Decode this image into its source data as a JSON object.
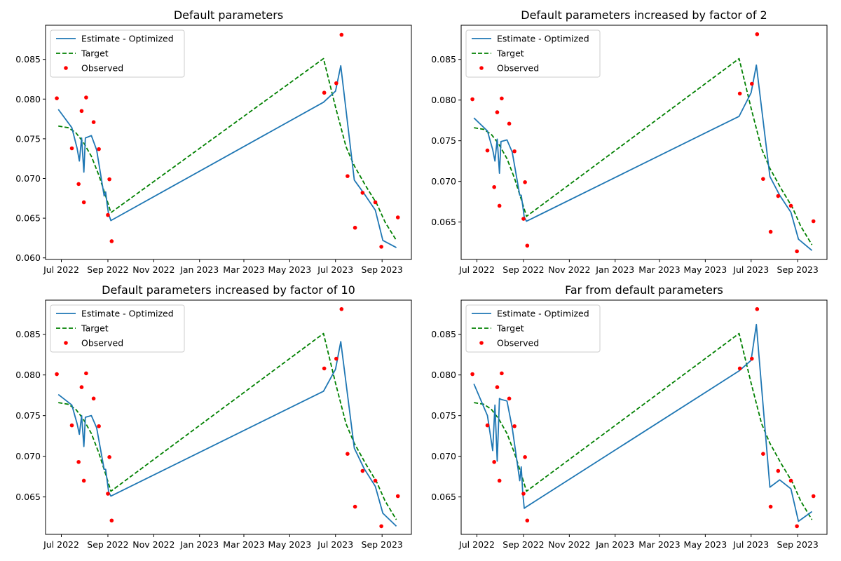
{
  "chart_data": [
    {
      "type": "line",
      "title": "Default parameters",
      "xlabel": "",
      "ylabel": "",
      "xlim": [
        "2022-06-10",
        "2023-10-10"
      ],
      "ylim": [
        0.0598,
        0.0893
      ],
      "yticks": [
        0.06,
        0.065,
        0.07,
        0.075,
        0.08,
        0.085
      ],
      "ytick_labels": [
        "0.060",
        "0.065",
        "0.070",
        "0.075",
        "0.080",
        "0.085"
      ],
      "xticks": [
        "2022-07-01",
        "2022-09-01",
        "2022-11-01",
        "2023-01-01",
        "2023-03-01",
        "2023-05-01",
        "2023-07-01",
        "2023-09-01"
      ],
      "xtick_labels": [
        "Jul 2022",
        "Sep 2022",
        "Nov 2022",
        "Jan 2023",
        "Mar 2023",
        "May 2023",
        "Jul 2023",
        "Sep 2023"
      ],
      "legend": {
        "placement": "top-left",
        "entries": [
          "Estimate - Optimized",
          "Target",
          "Observed"
        ]
      },
      "series": [
        {
          "name": "Estimate - Optimized",
          "style": "solid",
          "color": "#1f77b4",
          "x": [
            "2022-06-27",
            "2022-07-15",
            "2022-07-22",
            "2022-07-25",
            "2022-07-28",
            "2022-07-31",
            "2022-08-02",
            "2022-08-10",
            "2022-08-17",
            "2022-08-27",
            "2022-08-29",
            "2022-08-31",
            "2022-09-02",
            "2022-09-05",
            "2023-06-15",
            "2023-07-01",
            "2023-07-08",
            "2023-07-26",
            "2023-08-08",
            "2023-08-23",
            "2023-09-02",
            "2023-09-20"
          ],
          "y": [
            0.0787,
            0.0764,
            0.0738,
            0.0722,
            0.0751,
            0.0708,
            0.0751,
            0.0754,
            0.0736,
            0.0678,
            0.0683,
            0.0667,
            0.0655,
            0.0647,
            0.0796,
            0.081,
            0.0842,
            0.0698,
            0.0681,
            0.066,
            0.0622,
            0.0613
          ]
        },
        {
          "name": "Target",
          "style": "dashed",
          "color": "#008000",
          "x": [
            "2022-06-27",
            "2022-07-10",
            "2022-07-20",
            "2022-07-30",
            "2022-08-10",
            "2022-08-20",
            "2022-08-30",
            "2022-09-05",
            "2023-06-15",
            "2023-07-01",
            "2023-07-15",
            "2023-07-26",
            "2023-08-10",
            "2023-08-25",
            "2023-09-05",
            "2023-09-20"
          ],
          "y": [
            0.0766,
            0.0764,
            0.0758,
            0.0746,
            0.0728,
            0.0704,
            0.0675,
            0.0657,
            0.0851,
            0.079,
            0.074,
            0.0716,
            0.0691,
            0.0668,
            0.0645,
            0.0622
          ]
        },
        {
          "name": "Observed",
          "style": "scatter",
          "color": "#ff0000",
          "x": [
            "2022-06-25",
            "2022-07-15",
            "2022-07-24",
            "2022-07-28",
            "2022-07-31",
            "2022-08-03",
            "2022-08-13",
            "2022-08-20",
            "2022-09-01",
            "2022-09-03",
            "2022-09-06",
            "2023-06-16",
            "2023-07-02",
            "2023-07-09",
            "2023-07-17",
            "2023-07-27",
            "2023-08-06",
            "2023-08-23",
            "2023-08-31",
            "2023-09-22"
          ],
          "y": [
            0.0801,
            0.0738,
            0.0693,
            0.0785,
            0.067,
            0.0802,
            0.0771,
            0.0737,
            0.0654,
            0.0699,
            0.0621,
            0.0808,
            0.082,
            0.0881,
            0.0703,
            0.0638,
            0.0682,
            0.067,
            0.0614,
            0.0651
          ]
        }
      ]
    },
    {
      "type": "line",
      "title": "Default parameters increased by factor of 2",
      "xlabel": "",
      "ylabel": "",
      "xlim": [
        "2022-06-10",
        "2023-10-10"
      ],
      "ylim": [
        0.0604,
        0.0892
      ],
      "yticks": [
        0.065,
        0.07,
        0.075,
        0.08,
        0.085
      ],
      "ytick_labels": [
        "0.065",
        "0.070",
        "0.075",
        "0.080",
        "0.085"
      ],
      "xticks": [
        "2022-07-01",
        "2022-09-01",
        "2022-11-01",
        "2023-01-01",
        "2023-03-01",
        "2023-05-01",
        "2023-07-01",
        "2023-09-01"
      ],
      "xtick_labels": [
        "Jul 2022",
        "Sep 2022",
        "Nov 2022",
        "Jan 2023",
        "Mar 2023",
        "May 2023",
        "Jul 2023",
        "Sep 2023"
      ],
      "legend": {
        "placement": "top-left",
        "entries": [
          "Estimate - Optimized",
          "Target",
          "Observed"
        ]
      },
      "series": [
        {
          "name": "Estimate - Optimized",
          "style": "solid",
          "color": "#1f77b4",
          "x": [
            "2022-06-27",
            "2022-07-15",
            "2022-07-22",
            "2022-07-25",
            "2022-07-28",
            "2022-07-31",
            "2022-08-02",
            "2022-08-10",
            "2022-08-17",
            "2022-08-27",
            "2022-08-29",
            "2022-08-31",
            "2022-09-02",
            "2022-09-05",
            "2023-06-15",
            "2023-07-01",
            "2023-07-08",
            "2023-07-26",
            "2023-08-08",
            "2023-08-23",
            "2023-09-02",
            "2023-09-20"
          ],
          "y": [
            0.0778,
            0.0762,
            0.0739,
            0.0725,
            0.0752,
            0.071,
            0.0749,
            0.0751,
            0.0736,
            0.0683,
            0.0683,
            0.067,
            0.0656,
            0.0651,
            0.078,
            0.0809,
            0.0843,
            0.0706,
            0.0683,
            0.0662,
            0.0629,
            0.0615
          ]
        },
        {
          "name": "Target",
          "style": "dashed",
          "color": "#008000",
          "x": [
            "2022-06-27",
            "2022-07-10",
            "2022-07-20",
            "2022-07-30",
            "2022-08-10",
            "2022-08-20",
            "2022-08-30",
            "2022-09-05",
            "2023-06-15",
            "2023-07-01",
            "2023-07-15",
            "2023-07-26",
            "2023-08-10",
            "2023-08-25",
            "2023-09-05",
            "2023-09-20"
          ],
          "y": [
            0.0766,
            0.0764,
            0.0758,
            0.0746,
            0.0728,
            0.0704,
            0.0675,
            0.0657,
            0.0851,
            0.079,
            0.074,
            0.0716,
            0.0691,
            0.0668,
            0.0645,
            0.0622
          ]
        },
        {
          "name": "Observed",
          "style": "scatter",
          "color": "#ff0000",
          "x": [
            "2022-06-25",
            "2022-07-15",
            "2022-07-24",
            "2022-07-28",
            "2022-07-31",
            "2022-08-03",
            "2022-08-13",
            "2022-08-20",
            "2022-09-01",
            "2022-09-03",
            "2022-09-06",
            "2023-06-16",
            "2023-07-02",
            "2023-07-09",
            "2023-07-17",
            "2023-07-27",
            "2023-08-06",
            "2023-08-23",
            "2023-08-31",
            "2023-09-22"
          ],
          "y": [
            0.0801,
            0.0738,
            0.0693,
            0.0785,
            0.067,
            0.0802,
            0.0771,
            0.0737,
            0.0654,
            0.0699,
            0.0621,
            0.0808,
            0.082,
            0.0881,
            0.0703,
            0.0638,
            0.0682,
            0.067,
            0.0614,
            0.0651
          ]
        }
      ]
    },
    {
      "type": "line",
      "title": "Default parameters increased by factor of 10",
      "xlabel": "",
      "ylabel": "",
      "xlim": [
        "2022-06-10",
        "2023-10-10"
      ],
      "ylim": [
        0.0604,
        0.0892
      ],
      "yticks": [
        0.065,
        0.07,
        0.075,
        0.08,
        0.085
      ],
      "ytick_labels": [
        "0.065",
        "0.070",
        "0.075",
        "0.080",
        "0.085"
      ],
      "xticks": [
        "2022-07-01",
        "2022-09-01",
        "2022-11-01",
        "2023-01-01",
        "2023-03-01",
        "2023-05-01",
        "2023-07-01",
        "2023-09-01"
      ],
      "xtick_labels": [
        "Jul 2022",
        "Sep 2022",
        "Nov 2022",
        "Jan 2023",
        "Mar 2023",
        "May 2023",
        "Jul 2023",
        "Sep 2023"
      ],
      "legend": {
        "placement": "top-left",
        "entries": [
          "Estimate - Optimized",
          "Target",
          "Observed"
        ]
      },
      "series": [
        {
          "name": "Estimate - Optimized",
          "style": "solid",
          "color": "#1f77b4",
          "x": [
            "2022-06-27",
            "2022-07-15",
            "2022-07-22",
            "2022-07-25",
            "2022-07-28",
            "2022-07-31",
            "2022-08-02",
            "2022-08-10",
            "2022-08-17",
            "2022-08-27",
            "2022-08-29",
            "2022-08-31",
            "2022-09-02",
            "2022-09-05",
            "2023-06-15",
            "2023-07-01",
            "2023-07-08",
            "2023-07-26",
            "2023-08-08",
            "2023-08-23",
            "2023-09-02",
            "2023-09-20"
          ],
          "y": [
            0.0776,
            0.0763,
            0.074,
            0.0727,
            0.075,
            0.0712,
            0.0748,
            0.075,
            0.0735,
            0.0684,
            0.0684,
            0.067,
            0.0656,
            0.0651,
            0.078,
            0.0807,
            0.0841,
            0.071,
            0.0685,
            0.0663,
            0.063,
            0.0614
          ]
        },
        {
          "name": "Target",
          "style": "dashed",
          "color": "#008000",
          "x": [
            "2022-06-27",
            "2022-07-10",
            "2022-07-20",
            "2022-07-30",
            "2022-08-10",
            "2022-08-20",
            "2022-08-30",
            "2022-09-05",
            "2023-06-15",
            "2023-07-01",
            "2023-07-15",
            "2023-07-26",
            "2023-08-10",
            "2023-08-25",
            "2023-09-05",
            "2023-09-20"
          ],
          "y": [
            0.0766,
            0.0764,
            0.0758,
            0.0746,
            0.0728,
            0.0704,
            0.0675,
            0.0657,
            0.0851,
            0.079,
            0.074,
            0.0716,
            0.0691,
            0.0668,
            0.0645,
            0.0622
          ]
        },
        {
          "name": "Observed",
          "style": "scatter",
          "color": "#ff0000",
          "x": [
            "2022-06-25",
            "2022-07-15",
            "2022-07-24",
            "2022-07-28",
            "2022-07-31",
            "2022-08-03",
            "2022-08-13",
            "2022-08-20",
            "2022-09-01",
            "2022-09-03",
            "2022-09-06",
            "2023-06-16",
            "2023-07-02",
            "2023-07-09",
            "2023-07-17",
            "2023-07-27",
            "2023-08-06",
            "2023-08-23",
            "2023-08-31",
            "2023-09-22"
          ],
          "y": [
            0.0801,
            0.0738,
            0.0693,
            0.0785,
            0.067,
            0.0802,
            0.0771,
            0.0737,
            0.0654,
            0.0699,
            0.0621,
            0.0808,
            0.082,
            0.0881,
            0.0703,
            0.0638,
            0.0682,
            0.067,
            0.0614,
            0.0651
          ]
        }
      ]
    },
    {
      "type": "line",
      "title": "Far from default parameters",
      "xlabel": "",
      "ylabel": "",
      "xlim": [
        "2022-06-10",
        "2023-10-10"
      ],
      "ylim": [
        0.0604,
        0.0892
      ],
      "yticks": [
        0.065,
        0.07,
        0.075,
        0.08,
        0.085
      ],
      "ytick_labels": [
        "0.065",
        "0.070",
        "0.075",
        "0.080",
        "0.085"
      ],
      "xticks": [
        "2022-07-01",
        "2022-09-01",
        "2022-11-01",
        "2023-01-01",
        "2023-03-01",
        "2023-05-01",
        "2023-07-01",
        "2023-09-01"
      ],
      "xtick_labels": [
        "Jul 2022",
        "Sep 2022",
        "Nov 2022",
        "Jan 2023",
        "Mar 2023",
        "May 2023",
        "Jul 2023",
        "Sep 2023"
      ],
      "legend": {
        "placement": "top-left",
        "entries": [
          "Estimate - Optimized",
          "Target",
          "Observed"
        ]
      },
      "series": [
        {
          "name": "Estimate - Optimized",
          "style": "solid",
          "color": "#1f77b4",
          "x": [
            "2022-06-27",
            "2022-07-15",
            "2022-07-22",
            "2022-07-25",
            "2022-07-28",
            "2022-07-31",
            "2022-08-02",
            "2022-08-10",
            "2022-08-17",
            "2022-08-27",
            "2022-08-29",
            "2022-08-31",
            "2022-09-02",
            "2022-09-05",
            "2023-06-15",
            "2023-07-01",
            "2023-07-08",
            "2023-07-26",
            "2023-08-08",
            "2023-08-23",
            "2023-09-02",
            "2023-09-20"
          ],
          "y": [
            0.0789,
            0.075,
            0.0707,
            0.0763,
            0.0694,
            0.0771,
            0.077,
            0.0768,
            0.0735,
            0.067,
            0.0687,
            0.0655,
            0.0636,
            0.0638,
            0.0805,
            0.0818,
            0.0862,
            0.0662,
            0.0671,
            0.066,
            0.062,
            0.0632
          ]
        },
        {
          "name": "Target",
          "style": "dashed",
          "color": "#008000",
          "x": [
            "2022-06-27",
            "2022-07-10",
            "2022-07-20",
            "2022-07-30",
            "2022-08-10",
            "2022-08-20",
            "2022-08-30",
            "2022-09-05",
            "2023-06-15",
            "2023-07-01",
            "2023-07-15",
            "2023-07-26",
            "2023-08-10",
            "2023-08-25",
            "2023-09-05",
            "2023-09-20"
          ],
          "y": [
            0.0766,
            0.0764,
            0.0758,
            0.0746,
            0.0728,
            0.0704,
            0.0675,
            0.0657,
            0.0851,
            0.079,
            0.074,
            0.0716,
            0.0691,
            0.0668,
            0.0645,
            0.0622
          ]
        },
        {
          "name": "Observed",
          "style": "scatter",
          "color": "#ff0000",
          "x": [
            "2022-06-25",
            "2022-07-15",
            "2022-07-24",
            "2022-07-28",
            "2022-07-31",
            "2022-08-03",
            "2022-08-13",
            "2022-08-20",
            "2022-09-01",
            "2022-09-03",
            "2022-09-06",
            "2023-06-16",
            "2023-07-02",
            "2023-07-09",
            "2023-07-17",
            "2023-07-27",
            "2023-08-06",
            "2023-08-23",
            "2023-08-31",
            "2023-09-22"
          ],
          "y": [
            0.0801,
            0.0738,
            0.0693,
            0.0785,
            0.067,
            0.0802,
            0.0771,
            0.0737,
            0.0654,
            0.0699,
            0.0621,
            0.0808,
            0.082,
            0.0881,
            0.0703,
            0.0638,
            0.0682,
            0.067,
            0.0614,
            0.0651
          ]
        }
      ]
    }
  ]
}
